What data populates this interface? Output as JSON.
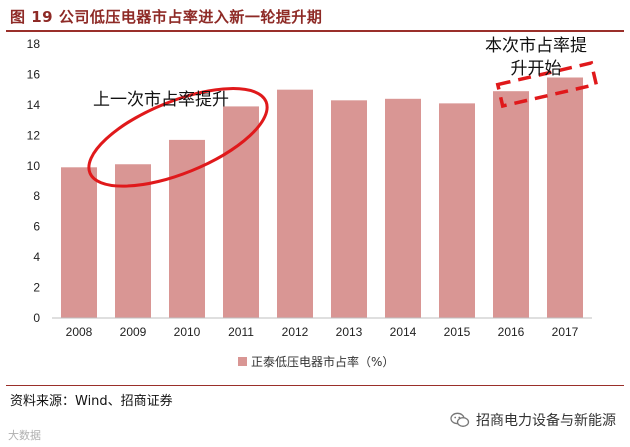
{
  "header": {
    "title": "图 19  公司低压电器市占率进入新一轮提升期"
  },
  "footer": {
    "source": "资料来源：Wind、招商证券",
    "watermark_right": "招商电力设备与新能源",
    "watermark_left": "大数据"
  },
  "colors": {
    "bar": "#d99694",
    "accent": "#e0191b",
    "title": "#8e2a26"
  },
  "chart_data": {
    "type": "bar",
    "categories": [
      "2008",
      "2009",
      "2010",
      "2011",
      "2012",
      "2013",
      "2014",
      "2015",
      "2016",
      "2017"
    ],
    "series": [
      {
        "name": "正泰低压电器市占率（%）",
        "values": [
          9.9,
          10.1,
          11.7,
          13.9,
          15.0,
          14.3,
          14.4,
          14.1,
          14.9,
          15.8
        ]
      }
    ],
    "ylim": [
      0,
      18
    ],
    "yticks": [
      0,
      2,
      4,
      6,
      8,
      10,
      12,
      14,
      16,
      18
    ],
    "grid": false,
    "legend_position": "bottom",
    "annotations": [
      {
        "text": "上一次市占率提升",
        "marker": "ellipse",
        "spans": [
          "2009",
          "2011"
        ]
      },
      {
        "text": "本次市占率提升开始",
        "marker": "dashed-box",
        "spans": [
          "2016",
          "2017"
        ]
      }
    ]
  }
}
